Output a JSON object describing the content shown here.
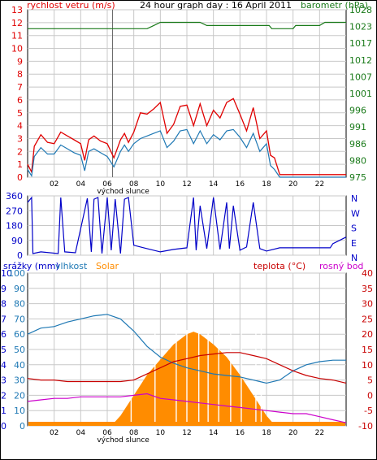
{
  "page": {
    "title": "24 hour graph day : 16 April 2011",
    "colors": {
      "grid": "#c8c8c8",
      "frame": "#000000",
      "wind_gust": "#e00000",
      "wind_avg": "#1e78b4",
      "pressure": "#1a7a1a",
      "direction": "#0000c8",
      "rain": "#0000c8",
      "humidity": "#1e78b4",
      "solar": "#ff8c00",
      "temperature": "#c80000",
      "dewpoint": "#cc00cc"
    }
  },
  "chart_data": [
    {
      "type": "line",
      "title": "24 hour graph day : 16 April 2011",
      "ylabel_left": "rychlost vetru (m/s)",
      "ylabel_right": "barometr (hPa)",
      "xlabel": "východ slunce",
      "xticks": [
        "02",
        "04",
        "06",
        "08",
        "10",
        "12",
        "14",
        "16",
        "18",
        "20",
        "22"
      ],
      "ylim_left": [
        0,
        13
      ],
      "yticks_left": [
        "0",
        "1",
        "2",
        "3",
        "4",
        "5",
        "6",
        "7",
        "8",
        "9",
        "10",
        "11",
        "12",
        "13"
      ],
      "yticks_right": [
        "975",
        "980",
        "986",
        "991",
        "996",
        "1001",
        "1007",
        "1012",
        "1017",
        "1023",
        "1028"
      ],
      "ylim_right": [
        975,
        1028
      ],
      "grid": true,
      "series": [
        {
          "name": "gust",
          "x": [
            0,
            0.3,
            0.5,
            1,
            1.5,
            2,
            2.5,
            3,
            3.5,
            4,
            4.3,
            4.6,
            5,
            5.5,
            6,
            6.5,
            7,
            7.3,
            7.6,
            8,
            8.5,
            9,
            9.5,
            10,
            10.5,
            11,
            11.5,
            12,
            12.5,
            13,
            13.5,
            14,
            14.5,
            15,
            15.5,
            16,
            16.5,
            17,
            17.5,
            18,
            18.3,
            18.6,
            19,
            24
          ],
          "y": [
            1,
            0.4,
            2.4,
            3.3,
            2.7,
            2.6,
            3.5,
            3.2,
            2.9,
            2.6,
            1.3,
            2.9,
            3.2,
            2.8,
            2.6,
            1.5,
            2.9,
            3.4,
            2.7,
            3.5,
            5.0,
            4.9,
            5.3,
            5.8,
            3.4,
            4.1,
            5.5,
            5.6,
            4.0,
            5.7,
            4.0,
            5.2,
            4.6,
            5.8,
            6.1,
            4.9,
            3.6,
            5.4,
            3.0,
            3.6,
            1.7,
            1.5,
            0.2,
            0.2
          ]
        },
        {
          "name": "average",
          "x": [
            0,
            0.3,
            0.5,
            1,
            1.5,
            2,
            2.5,
            3,
            3.5,
            4,
            4.3,
            4.6,
            5,
            5.5,
            6,
            6.5,
            7,
            7.3,
            7.6,
            8,
            8.5,
            9,
            9.5,
            10,
            10.5,
            11,
            11.5,
            12,
            12.5,
            13,
            13.5,
            14,
            14.5,
            15,
            15.5,
            16,
            16.5,
            17,
            17.5,
            18,
            18.3,
            18.6,
            19,
            24
          ],
          "y": [
            0.6,
            0.1,
            1.6,
            2.3,
            1.8,
            1.8,
            2.5,
            2.2,
            1.9,
            1.7,
            0.5,
            2.0,
            2.2,
            1.9,
            1.6,
            0.8,
            2.0,
            2.5,
            2.0,
            2.6,
            3.0,
            3.2,
            3.4,
            3.6,
            2.3,
            2.8,
            3.6,
            3.7,
            2.6,
            3.6,
            2.6,
            3.3,
            2.9,
            3.6,
            3.7,
            3.1,
            2.3,
            3.4,
            2.0,
            2.6,
            0.9,
            0.6,
            0,
            0
          ]
        },
        {
          "name": "pressure",
          "x": [
            0,
            9,
            9.5,
            10,
            13,
            13.5,
            14,
            18.2,
            18.4,
            19,
            20,
            20.2,
            20.5,
            21,
            22,
            22.4,
            23,
            24
          ],
          "y": [
            1022,
            1022,
            1023,
            1024,
            1024,
            1023,
            1023,
            1023,
            1022,
            1022,
            1022,
            1023,
            1023,
            1023,
            1023,
            1024,
            1024,
            1024
          ]
        }
      ]
    },
    {
      "type": "line",
      "yticks_left": [
        "360",
        "270",
        "180",
        "90",
        "0"
      ],
      "yticks_right": [
        "N",
        "W",
        "S",
        "E",
        "N"
      ],
      "ylim": [
        0,
        360
      ],
      "grid": true,
      "series": [
        {
          "name": "direction",
          "x": [
            0,
            0.3,
            0.4,
            1,
            2.3,
            2.5,
            2.8,
            3.6,
            4.5,
            4.8,
            5,
            5.3,
            5.6,
            6,
            6.3,
            6.6,
            7.0,
            7.3,
            7.6,
            8,
            9,
            10,
            11,
            12,
            12.5,
            12.7,
            13,
            13.5,
            14,
            14.5,
            15,
            15.2,
            15.5,
            16,
            16.5,
            17,
            17.5,
            18,
            19,
            20,
            21,
            22,
            22.8,
            23,
            23.5,
            24
          ],
          "y": [
            320,
            350,
            10,
            20,
            10,
            350,
            20,
            15,
            345,
            20,
            340,
            350,
            10,
            350,
            30,
            340,
            10,
            340,
            350,
            60,
            40,
            20,
            35,
            45,
            350,
            30,
            300,
            40,
            350,
            35,
            320,
            40,
            300,
            30,
            50,
            320,
            40,
            25,
            45,
            45,
            45,
            45,
            45,
            70,
            90,
            110
          ]
        }
      ]
    },
    {
      "type": "line",
      "labels_top": [
        "srážky (mm)",
        "vlhkost",
        "Solar",
        "teplota (°C)",
        "rosný bod"
      ],
      "xlabel": "východ slunce",
      "xticks": [
        "02",
        "04",
        "06",
        "08",
        "10",
        "12",
        "14",
        "16",
        "18",
        "20",
        "22"
      ],
      "yticks_rain": [
        "0",
        "1",
        "2",
        "3",
        "4",
        "5",
        "6",
        "7",
        "8",
        "9",
        "10"
      ],
      "yticks_hum": [
        "0",
        "10",
        "20",
        "30",
        "40",
        "50",
        "60",
        "70",
        "80",
        "90",
        "100"
      ],
      "yticks_solar": [
        "0",
        "3",
        "6",
        "9",
        "12",
        "15",
        "18",
        "21",
        "24",
        "27",
        "30"
      ],
      "yticks_temp": [
        "-10",
        "-5",
        "0",
        "5",
        "10",
        "15",
        "20",
        "25",
        "30",
        "35",
        "40"
      ],
      "ylim_temp": [
        -10,
        40
      ],
      "grid": true,
      "series": [
        {
          "name": "humidity",
          "x": [
            0,
            1,
            2,
            3,
            4,
            5,
            6,
            7,
            8,
            9,
            10,
            11,
            12,
            13,
            14,
            15,
            16,
            17,
            17.5,
            18,
            19,
            20,
            21,
            22,
            23,
            24
          ],
          "y": [
            60,
            64,
            65,
            68,
            70,
            72,
            73,
            70,
            62,
            52,
            45,
            41,
            38,
            36,
            34,
            33,
            32,
            30,
            29,
            28,
            30,
            36,
            40,
            42,
            43,
            43
          ]
        },
        {
          "name": "solar",
          "x": [
            6.3,
            7,
            8,
            9,
            10,
            11,
            12,
            12.5,
            13,
            14,
            15,
            16,
            17,
            18,
            18.5,
            18.7
          ],
          "y": [
            0,
            2,
            6,
            10,
            13,
            16,
            18,
            18.5,
            18,
            16,
            13.5,
            10,
            6,
            2,
            0.5,
            0
          ]
        },
        {
          "name": "temperature",
          "x": [
            0,
            1,
            2,
            3,
            4,
            5,
            6,
            7,
            8,
            9,
            10,
            11,
            12,
            13,
            14,
            15,
            16,
            17,
            18,
            19,
            20,
            21,
            22,
            23,
            24
          ],
          "y": [
            5.5,
            5,
            5,
            4.5,
            4.5,
            4.5,
            4.5,
            4.5,
            5,
            7,
            9,
            11,
            12,
            13,
            13.5,
            14,
            14,
            13,
            12,
            10,
            8,
            6.5,
            5.5,
            5,
            4
          ]
        },
        {
          "name": "dewpoint",
          "x": [
            0,
            1,
            2,
            3,
            4,
            5,
            6,
            7,
            8,
            9,
            10,
            11,
            12,
            13,
            14,
            15,
            16,
            17,
            18,
            19,
            20,
            21,
            22,
            23,
            24
          ],
          "y": [
            -2,
            -1.5,
            -1,
            -1,
            -0.5,
            -0.5,
            -0.5,
            -0.5,
            0,
            0.5,
            -1,
            -1.5,
            -2,
            -2.5,
            -3,
            -3.5,
            -4,
            -4.5,
            -5,
            -5.5,
            -6,
            -6,
            -7,
            -8,
            -9
          ]
        }
      ]
    }
  ]
}
